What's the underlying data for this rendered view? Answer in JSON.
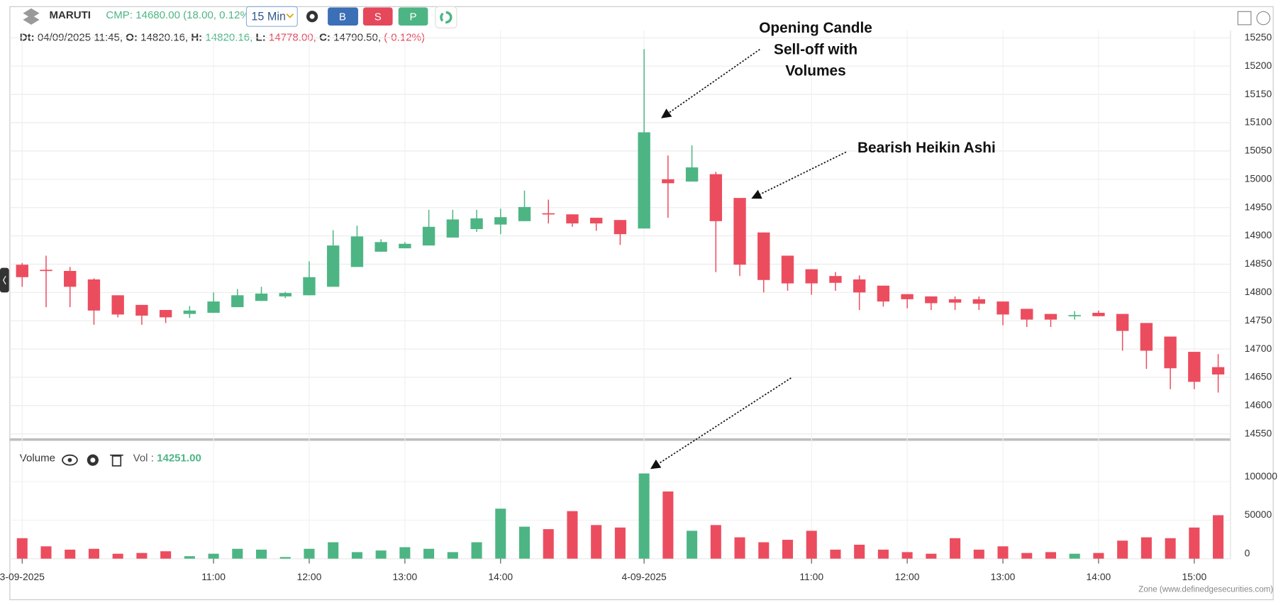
{
  "header": {
    "symbol": "MARUTI",
    "cmp_label": "CMP:",
    "cmp_value": "14680.00 (18.00, 0.12%)",
    "interval": "15 Min",
    "buttons": [
      "B",
      "S",
      "P"
    ],
    "ohlc": {
      "dt_label": "Dt:",
      "dt": "04/09/2025 11:45,",
      "o_label": "O:",
      "o": "14820.16,",
      "h_label": "H:",
      "h": "14820.16,",
      "l_label": "L:",
      "l": "14778.00,",
      "c_label": "C:",
      "c": "14790.50,",
      "change": "(-0.12%)"
    }
  },
  "volume_panel": {
    "title": "Volume",
    "vol_label": "Vol :",
    "vol_value": "14251.00"
  },
  "footer": "Zone (www.definedgesecurities.com)",
  "chart_data": {
    "type": "candlestick",
    "up_color": "#4db584",
    "down_color": "#eb4d5f",
    "categories": [
      "3-09-2025",
      null,
      null,
      null,
      null,
      null,
      null,
      null,
      "11:00",
      null,
      null,
      null,
      "12:00",
      null,
      null,
      null,
      "13:00",
      null,
      null,
      null,
      "14:00",
      null,
      null,
      null,
      null,
      null,
      "4-09-2025",
      null,
      null,
      null,
      null,
      null,
      null,
      "11:00",
      null,
      null,
      null,
      "12:00",
      null,
      null,
      null,
      "13:00",
      null,
      null,
      null,
      "14:00",
      null,
      null,
      null,
      "15:00",
      null
    ],
    "open": [
      14849,
      14840,
      14838,
      14823,
      14795,
      14778,
      14769,
      14762,
      14764,
      14774,
      14785,
      14793,
      14795,
      14810,
      14845,
      14872,
      14878,
      14883,
      14897,
      14912,
      14920,
      14926,
      14940,
      14938,
      14932,
      14928,
      14913,
      15000,
      14996,
      15009,
      14967,
      14906,
      14865,
      14841,
      14829,
      14823,
      14812,
      14797,
      14793,
      14788,
      14788,
      14784,
      14771,
      14762,
      14758,
      14764,
      14762,
      14746,
      14722,
      14695,
      14668
    ],
    "high": [
      14852,
      14865,
      14845,
      14825,
      14795,
      14778,
      14769,
      14776,
      14800,
      14806,
      14810,
      14801,
      14855,
      14910,
      14918,
      14894,
      14889,
      14946,
      14946,
      14946,
      14948,
      14980,
      14964,
      14938,
      14932,
      14928,
      15230,
      15042,
      15060,
      15013,
      14967,
      14906,
      14865,
      14841,
      14836,
      14830,
      14812,
      14797,
      14793,
      14793,
      14793,
      14784,
      14771,
      14762,
      14767,
      14768,
      14762,
      14746,
      14722,
      14695,
      14691
    ],
    "low": [
      14810,
      14774,
      14774,
      14743,
      14756,
      14743,
      14746,
      14755,
      14764,
      14774,
      14785,
      14790,
      14795,
      14810,
      14845,
      14872,
      14878,
      14883,
      14897,
      14907,
      14903,
      14926,
      14922,
      14916,
      14909,
      14884,
      14913,
      14932,
      14996,
      14836,
      14829,
      14800,
      14803,
      14796,
      14803,
      14769,
      14775,
      14772,
      14769,
      14769,
      14769,
      14742,
      14739,
      14739,
      14752,
      14758,
      14697,
      14665,
      14629,
      14629,
      14623
    ],
    "close": [
      14827,
      14838,
      14810,
      14768,
      14761,
      14759,
      14756,
      14768,
      14784,
      14795,
      14798,
      14799,
      14827,
      14883,
      14899,
      14889,
      14886,
      14916,
      14929,
      14931,
      14933,
      14951,
      14939,
      14922,
      14922,
      14903,
      15083,
      14993,
      15021,
      14926,
      14849,
      14822,
      14816,
      14816,
      14817,
      14800,
      14784,
      14788,
      14781,
      14782,
      14780,
      14761,
      14752,
      14752,
      14760,
      14758,
      14732,
      14697,
      14666,
      14642,
      14655
    ],
    "volume": [
      26600,
      16000,
      11700,
      12800,
      6400,
      7400,
      9600,
      3200,
      6400,
      12800,
      11700,
      2100,
      12800,
      21300,
      8500,
      10600,
      14900,
      12800,
      8500,
      21300,
      64900,
      41500,
      38300,
      61700,
      43600,
      40400,
      110600,
      87200,
      36200,
      43600,
      27700,
      21300,
      24500,
      36200,
      11700,
      18100,
      11700,
      8500,
      6400,
      26600,
      11700,
      16000,
      7400,
      8500,
      6400,
      7400,
      23400,
      27700,
      26600,
      40400,
      56400
    ],
    "ylim": [
      14540,
      15263
    ],
    "yticks": [
      14550,
      14600,
      14650,
      14700,
      14750,
      14800,
      14850,
      14900,
      14950,
      15000,
      15050,
      15100,
      15150,
      15200,
      15250
    ],
    "volume_ylim": [
      0,
      145000
    ],
    "volume_yticks": [
      0,
      50000,
      100000
    ],
    "grid": true,
    "annotations": [
      {
        "lines": [
          "Opening Candle",
          "Sell-off with",
          "Volumes"
        ]
      },
      {
        "lines": [
          "Bearish Heikin Ashi"
        ]
      }
    ]
  }
}
